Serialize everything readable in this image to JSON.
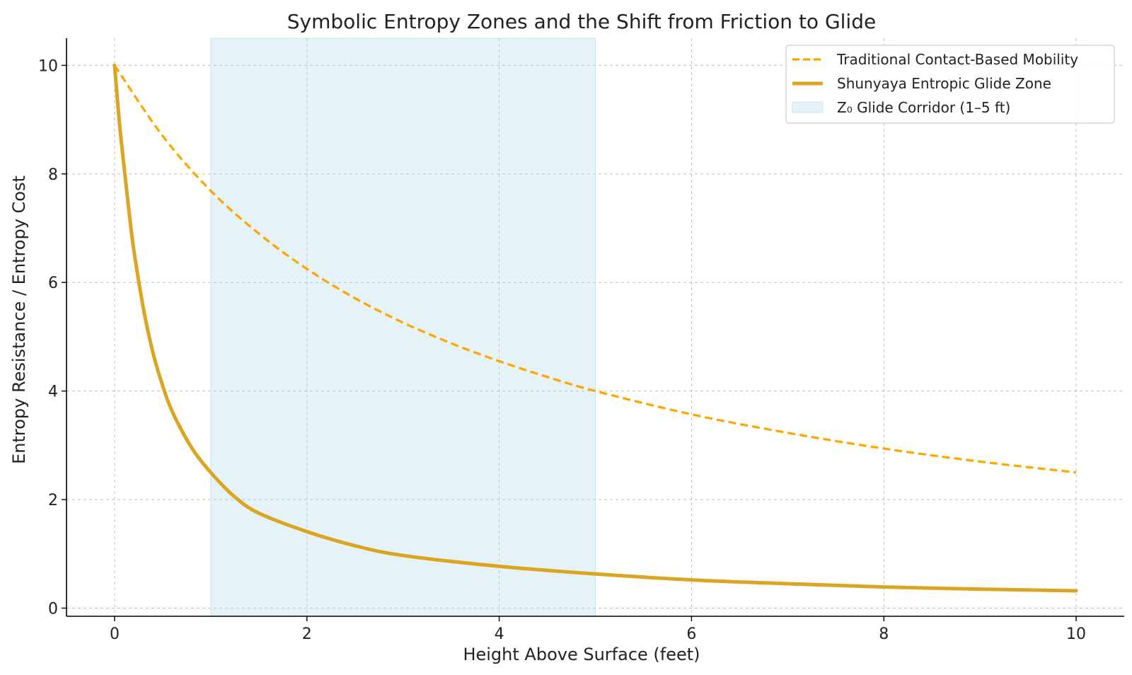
{
  "chart_data": {
    "type": "line",
    "title": "Symbolic Entropy Zones and the Shift from Friction to Glide",
    "xlabel": "Height Above Surface (feet)",
    "ylabel": "Entropy Resistance / Entropy Cost",
    "xlim": [
      -0.5,
      10.5
    ],
    "ylim": [
      -0.15,
      10.5
    ],
    "grid": true,
    "legend_position": "top-right",
    "x_ticks": [
      {
        "value": 0,
        "label": "0"
      },
      {
        "value": 2,
        "label": "2"
      },
      {
        "value": 4,
        "label": "4"
      },
      {
        "value": 6,
        "label": "6"
      },
      {
        "value": 8,
        "label": "8"
      },
      {
        "value": 10,
        "label": "10"
      }
    ],
    "y_ticks": [
      {
        "value": 0,
        "label": "0"
      },
      {
        "value": 2,
        "label": "2"
      },
      {
        "value": 4,
        "label": "4"
      },
      {
        "value": 6,
        "label": "6"
      },
      {
        "value": 8,
        "label": "8"
      },
      {
        "value": 10,
        "label": "10"
      }
    ],
    "shaded_regions": [
      {
        "name": "Z₀ Glide Corridor (1–5 ft)",
        "x_start": 1,
        "x_end": 5,
        "color": "#add8e6",
        "opacity": 0.32
      }
    ],
    "series": [
      {
        "name": "Traditional Contact-Based Mobility",
        "style": "dashed",
        "color": "#ffa500",
        "x": [
          0,
          0.5,
          1,
          1.5,
          2,
          2.5,
          3,
          3.5,
          4,
          4.5,
          5,
          6,
          7,
          8,
          9,
          10
        ],
        "y": [
          10,
          8.7,
          7.69,
          6.9,
          6.25,
          5.71,
          5.26,
          4.88,
          4.55,
          4.26,
          4.0,
          3.57,
          3.23,
          2.94,
          2.7,
          2.5
        ]
      },
      {
        "name": "Shunyaya Entropic Glide Zone",
        "style": "solid",
        "color": "#daa520",
        "x": [
          0,
          0.05,
          0.1,
          0.15,
          0.2,
          0.3,
          0.4,
          0.5,
          0.6,
          0.8,
          1.0,
          1.25,
          1.5,
          2,
          2.5,
          3,
          4,
          5,
          6,
          7,
          8,
          9,
          10
        ],
        "y": [
          10,
          8.95,
          8.11,
          7.31,
          6.6,
          5.52,
          4.7,
          4.1,
          3.62,
          2.96,
          2.5,
          2.05,
          1.75,
          1.41,
          1.15,
          0.97,
          0.77,
          0.63,
          0.52,
          0.45,
          0.39,
          0.35,
          0.32
        ]
      }
    ],
    "legend": [
      {
        "label": "Traditional Contact-Based Mobility",
        "kind": "dashed-line",
        "color": "#ffa500"
      },
      {
        "label": "Shunyaya Entropic Glide Zone",
        "kind": "solid-line",
        "color": "#daa520"
      },
      {
        "label": "Z₀ Glide Corridor (1–5 ft)",
        "kind": "patch",
        "color": "#add8e6"
      }
    ]
  }
}
